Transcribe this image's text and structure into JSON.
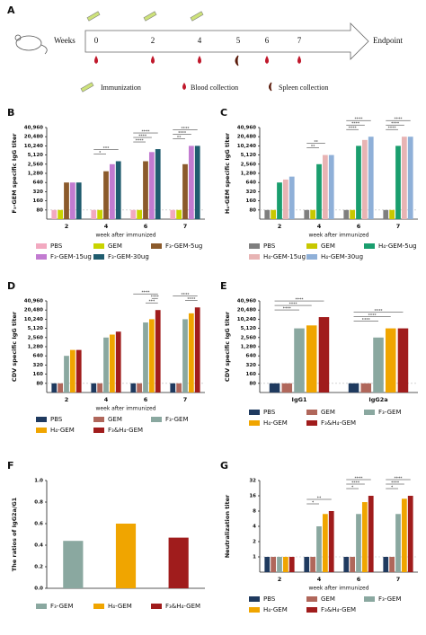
{
  "diagram": {
    "letter": "A",
    "weeks_label": "Weeks",
    "weeks": [
      "0",
      "2",
      "4",
      "5",
      "6",
      "7"
    ],
    "endpoint": "Endpoint",
    "legend": [
      "Immunization",
      "Blood collection",
      "Spleen collection"
    ]
  },
  "chart_data": [
    {
      "type": "bar",
      "panel": "B",
      "ylabel": "F₃-GEM specific IgG titer",
      "xlabel": "week after immunized",
      "log_scale": true,
      "hline": 80,
      "categories": [
        "2",
        "4",
        "6",
        "7"
      ],
      "ylim": [
        40,
        40960
      ],
      "yticks": [
        80,
        160,
        320,
        640,
        {
          "value": 1280,
          "label": "1,280"
        },
        {
          "value": 2560,
          "label": "2,560"
        },
        {
          "value": 5120,
          "label": "5,120"
        },
        {
          "value": 10240,
          "label": "10,240"
        },
        {
          "value": 20480,
          "label": "20,480"
        },
        {
          "value": 40960,
          "label": "40,960"
        }
      ],
      "series": [
        {
          "name": "PBS",
          "color": "#f2a9c0",
          "values": [
            80,
            80,
            80,
            80
          ]
        },
        {
          "name": "GEM",
          "color": "#c9d400",
          "values": [
            80,
            80,
            80,
            80
          ]
        },
        {
          "name": "F₃-GEM-5ug",
          "color": "#8b5a2b",
          "values": [
            640,
            1500,
            3200,
            2560
          ]
        },
        {
          "name": "F₃-GEM-15ug",
          "color": "#c27bd1",
          "values": [
            640,
            2560,
            6400,
            10240
          ]
        },
        {
          "name": "F₃-GEM-30ug",
          "color": "#1f5c6e",
          "values": [
            640,
            3200,
            8000,
            10240
          ]
        }
      ],
      "significance": [
        {
          "category": 1,
          "from": 0,
          "to": 2,
          "label": "*"
        },
        {
          "category": 1,
          "from": 0,
          "to": 4,
          "label": "***"
        },
        {
          "category": 2,
          "from": 0,
          "to": 2,
          "label": "****"
        },
        {
          "category": 2,
          "from": 0,
          "to": 3,
          "label": "****"
        },
        {
          "category": 2,
          "from": 0,
          "to": 4,
          "label": "****"
        },
        {
          "category": 3,
          "from": 0,
          "to": 2,
          "label": "**"
        },
        {
          "category": 3,
          "from": 0,
          "to": 3,
          "label": "****"
        },
        {
          "category": 3,
          "from": 0,
          "to": 4,
          "label": "****"
        }
      ]
    },
    {
      "type": "bar",
      "panel": "C",
      "ylabel": "H₄-GEM specific IgG titer",
      "xlabel": "week after immunized",
      "log_scale": true,
      "hline": 80,
      "categories": [
        "2",
        "4",
        "6",
        "7"
      ],
      "ylim": [
        40,
        40960
      ],
      "yticks": [
        80,
        160,
        320,
        640,
        {
          "value": 1280,
          "label": "1,280"
        },
        {
          "value": 2560,
          "label": "2,560"
        },
        {
          "value": 5120,
          "label": "5,120"
        },
        {
          "value": 10240,
          "label": "10,240"
        },
        {
          "value": 20480,
          "label": "20,480"
        },
        {
          "value": 40960,
          "label": "40,960"
        }
      ],
      "series": [
        {
          "name": "PBS",
          "color": "#7f7f7f",
          "values": [
            80,
            80,
            80,
            80
          ]
        },
        {
          "name": "GEM",
          "color": "#c8c800",
          "values": [
            80,
            80,
            80,
            80
          ]
        },
        {
          "name": "H₄-GEM-5ug",
          "color": "#1a9e6e",
          "values": [
            640,
            2560,
            10240,
            10240
          ]
        },
        {
          "name": "H₄-GEM-15ug",
          "color": "#e8b4b4",
          "values": [
            800,
            5120,
            16000,
            20480
          ]
        },
        {
          "name": "H₄-GEM-30ug",
          "color": "#8fb0d8",
          "values": [
            1000,
            5120,
            20480,
            20480
          ]
        }
      ],
      "significance": [
        {
          "category": 1,
          "from": 0,
          "to": 2,
          "label": "**"
        },
        {
          "category": 1,
          "from": 0,
          "to": 3,
          "label": "**"
        },
        {
          "category": 2,
          "from": 0,
          "to": 2,
          "label": "****"
        },
        {
          "category": 2,
          "from": 0,
          "to": 3,
          "label": "****"
        },
        {
          "category": 2,
          "from": 0,
          "to": 4,
          "label": "****"
        },
        {
          "category": 3,
          "from": 0,
          "to": 2,
          "label": "****"
        },
        {
          "category": 3,
          "from": 0,
          "to": 3,
          "label": "****"
        },
        {
          "category": 3,
          "from": 0,
          "to": 4,
          "label": "****"
        }
      ]
    },
    {
      "type": "bar",
      "panel": "D",
      "ylabel": "CDV specific IgG titer",
      "xlabel": "week after immunized",
      "log_scale": true,
      "hline": 80,
      "categories": [
        "2",
        "4",
        "6",
        "7"
      ],
      "ylim": [
        40,
        40960
      ],
      "yticks": [
        80,
        160,
        320,
        640,
        {
          "value": 1280,
          "label": "1,280"
        },
        {
          "value": 2560,
          "label": "2,560"
        },
        {
          "value": 5120,
          "label": "5,120"
        },
        {
          "value": 10240,
          "label": "10,240"
        },
        {
          "value": 20480,
          "label": "20,480"
        },
        {
          "value": 40960,
          "label": "40,960"
        }
      ],
      "series": [
        {
          "name": "PBS",
          "color": "#1f3a5f",
          "values": [
            80,
            80,
            80,
            80
          ]
        },
        {
          "name": "GEM",
          "color": "#b0675b",
          "values": [
            80,
            80,
            80,
            80
          ]
        },
        {
          "name": "F₃-GEM",
          "color": "#8aa8a0",
          "values": [
            640,
            2560,
            8000,
            10240
          ]
        },
        {
          "name": "H₄-GEM",
          "color": "#f0a500",
          "values": [
            1000,
            3200,
            10240,
            16000
          ]
        },
        {
          "name": "F₃&H₄-GEM",
          "color": "#a01c1c",
          "values": [
            1000,
            4000,
            20480,
            25000
          ]
        }
      ],
      "significance": [
        {
          "category": 2,
          "from": 2,
          "to": 4,
          "label": "***"
        },
        {
          "category": 2,
          "from": 3,
          "to": 4,
          "label": "****"
        },
        {
          "category": 2,
          "from": 0,
          "to": 4,
          "label": "****"
        },
        {
          "category": 3,
          "from": 2,
          "to": 4,
          "label": "****"
        },
        {
          "category": 3,
          "from": 0,
          "to": 4,
          "label": "****"
        }
      ]
    },
    {
      "type": "bar",
      "panel": "E",
      "ylabel": "CDV specific IgG titer",
      "log_scale": true,
      "hline": 80,
      "categories": [
        "IgG1",
        "IgG2a"
      ],
      "ylim": [
        40,
        40960
      ],
      "yticks": [
        80,
        160,
        320,
        640,
        {
          "value": 1280,
          "label": "1,280"
        },
        {
          "value": 2560,
          "label": "2,560"
        },
        {
          "value": 5120,
          "label": "5,120"
        },
        {
          "value": 10240,
          "label": "10,240"
        },
        {
          "value": 20480,
          "label": "20,480"
        },
        {
          "value": 40960,
          "label": "40,960"
        }
      ],
      "series": [
        {
          "name": "PBS",
          "color": "#1f3a5f",
          "values": [
            80,
            80
          ]
        },
        {
          "name": "GEM",
          "color": "#b0675b",
          "values": [
            80,
            80
          ]
        },
        {
          "name": "F₃-GEM",
          "color": "#8aa8a0",
          "values": [
            5120,
            2560
          ]
        },
        {
          "name": "H₄-GEM",
          "color": "#f0a500",
          "values": [
            6400,
            5120
          ]
        },
        {
          "name": "F₃&H₄-GEM",
          "color": "#a01c1c",
          "values": [
            12000,
            5120
          ]
        }
      ],
      "significance": [
        {
          "category": 0,
          "from": 0,
          "to": 2,
          "label": "****"
        },
        {
          "category": 0,
          "from": 0,
          "to": 3,
          "label": "****"
        },
        {
          "category": 0,
          "from": 0,
          "to": 4,
          "label": "****"
        },
        {
          "category": 1,
          "from": 0,
          "to": 2,
          "label": "****"
        },
        {
          "category": 1,
          "from": 0,
          "to": 3,
          "label": "****"
        },
        {
          "category": 1,
          "from": 0,
          "to": 4,
          "label": "****"
        }
      ]
    },
    {
      "type": "bar",
      "panel": "F",
      "ylabel": "The ratios of IgG2a/G1",
      "log_scale": false,
      "categories": [
        null,
        null,
        null
      ],
      "ylim": [
        0,
        1
      ],
      "yticks": [
        {
          "value": 0,
          "label": "0.0"
        },
        0.2,
        0.4,
        0.6,
        0.8,
        {
          "value": 1,
          "label": "1.0"
        }
      ],
      "series": [
        {
          "name": "F₃-GEM",
          "color": "#8aa8a0",
          "values": [
            0.44,
            null,
            null
          ]
        },
        {
          "name": "H₄-GEM",
          "color": "#f0a500",
          "values": [
            null,
            0.6,
            null
          ]
        },
        {
          "name": "F₃&H₄-GEM",
          "color": "#a01c1c",
          "values": [
            null,
            null,
            0.47
          ]
        }
      ],
      "significance": []
    },
    {
      "type": "bar",
      "panel": "G",
      "ylabel": "Neutralization titer",
      "xlabel": "week after immunized",
      "log_scale": true,
      "hline": 1,
      "categories": [
        "2",
        "4",
        "6",
        "7"
      ],
      "ylim": [
        0.5,
        32
      ],
      "yticks": [
        1,
        2,
        4,
        8,
        16,
        32
      ],
      "series": [
        {
          "name": "PBS",
          "color": "#1f3a5f",
          "values": [
            1,
            1,
            1,
            1
          ]
        },
        {
          "name": "GEM",
          "color": "#b0675b",
          "values": [
            1,
            1,
            1,
            1
          ]
        },
        {
          "name": "F₃-GEM",
          "color": "#8aa8a0",
          "values": [
            1,
            4,
            7,
            7
          ]
        },
        {
          "name": "H₄-GEM",
          "color": "#f0a500",
          "values": [
            1,
            7,
            12,
            14
          ]
        },
        {
          "name": "F₃&H₄-GEM",
          "color": "#a01c1c",
          "values": [
            1,
            8,
            16,
            16
          ]
        }
      ],
      "significance": [
        {
          "category": 1,
          "from": 0,
          "to": 2,
          "label": "*"
        },
        {
          "category": 1,
          "from": 0,
          "to": 4,
          "label": "**"
        },
        {
          "category": 2,
          "from": 0,
          "to": 2,
          "label": "*"
        },
        {
          "category": 2,
          "from": 0,
          "to": 3,
          "label": "****"
        },
        {
          "category": 2,
          "from": 0,
          "to": 4,
          "label": "****"
        },
        {
          "category": 3,
          "from": 0,
          "to": 2,
          "label": "*"
        },
        {
          "category": 3,
          "from": 0,
          "to": 3,
          "label": "****"
        },
        {
          "category": 3,
          "from": 0,
          "to": 4,
          "label": "****"
        }
      ]
    }
  ]
}
